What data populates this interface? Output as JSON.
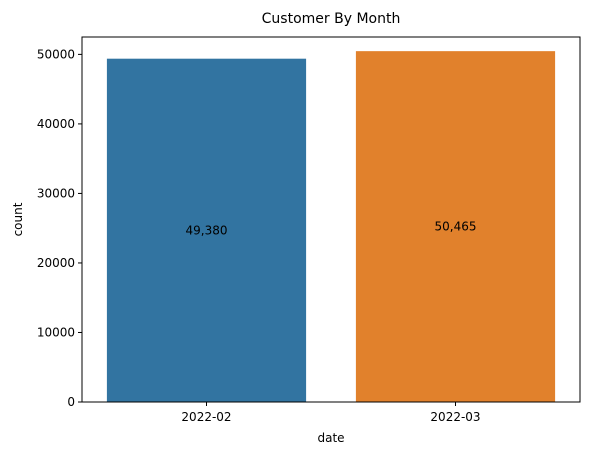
{
  "chart_data": {
    "type": "bar",
    "title": "Customer By Month",
    "xlabel": "date",
    "ylabel": "count",
    "categories": [
      "2022-02",
      "2022-03"
    ],
    "values": [
      49380,
      50465
    ],
    "bar_labels": [
      "49,380",
      "50,465"
    ],
    "colors": [
      "#3274a1",
      "#e1812c"
    ],
    "ylim": [
      0,
      52500
    ],
    "yticks": [
      0,
      10000,
      20000,
      30000,
      40000,
      50000
    ],
    "ytick_labels": [
      "0",
      "10000",
      "20000",
      "30000",
      "40000",
      "50000"
    ],
    "grid": false,
    "legend": "none"
  }
}
